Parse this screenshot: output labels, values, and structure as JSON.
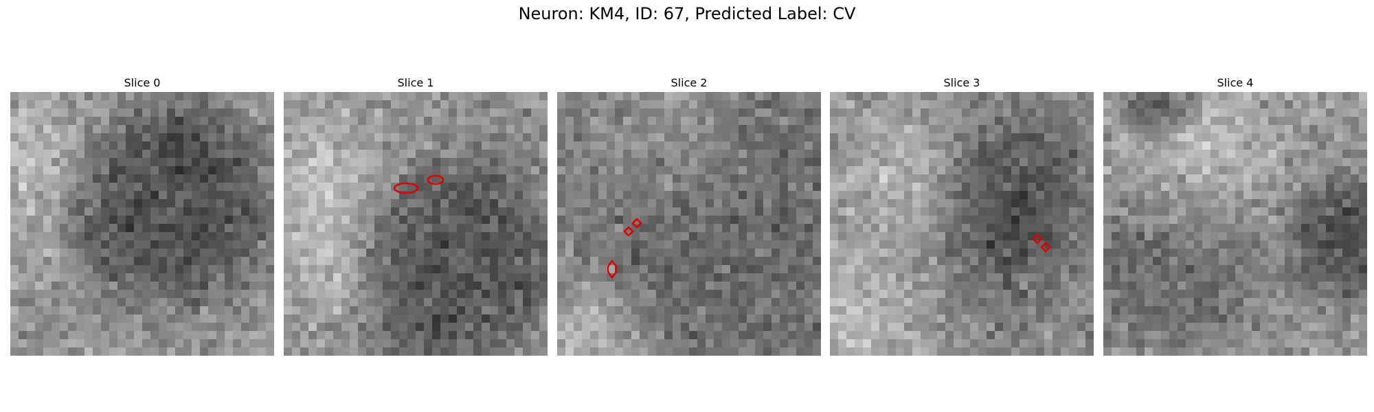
{
  "figure": {
    "title": "Neuron: KM4, ID: 67, Predicted Label: CV"
  },
  "panels": [
    {
      "title": "Slice 0",
      "texture": "dark-disk-center-right"
    },
    {
      "title": "Slice 1",
      "texture": "dark-disk-lower-right"
    },
    {
      "title": "Slice 2",
      "texture": "mottled-mid-gray"
    },
    {
      "title": "Slice 3",
      "texture": "dark-blob-right"
    },
    {
      "title": "Slice 4",
      "texture": "dark-band-bottom"
    }
  ],
  "colors": {
    "contour": "#e00000",
    "background": "#ffffff"
  }
}
